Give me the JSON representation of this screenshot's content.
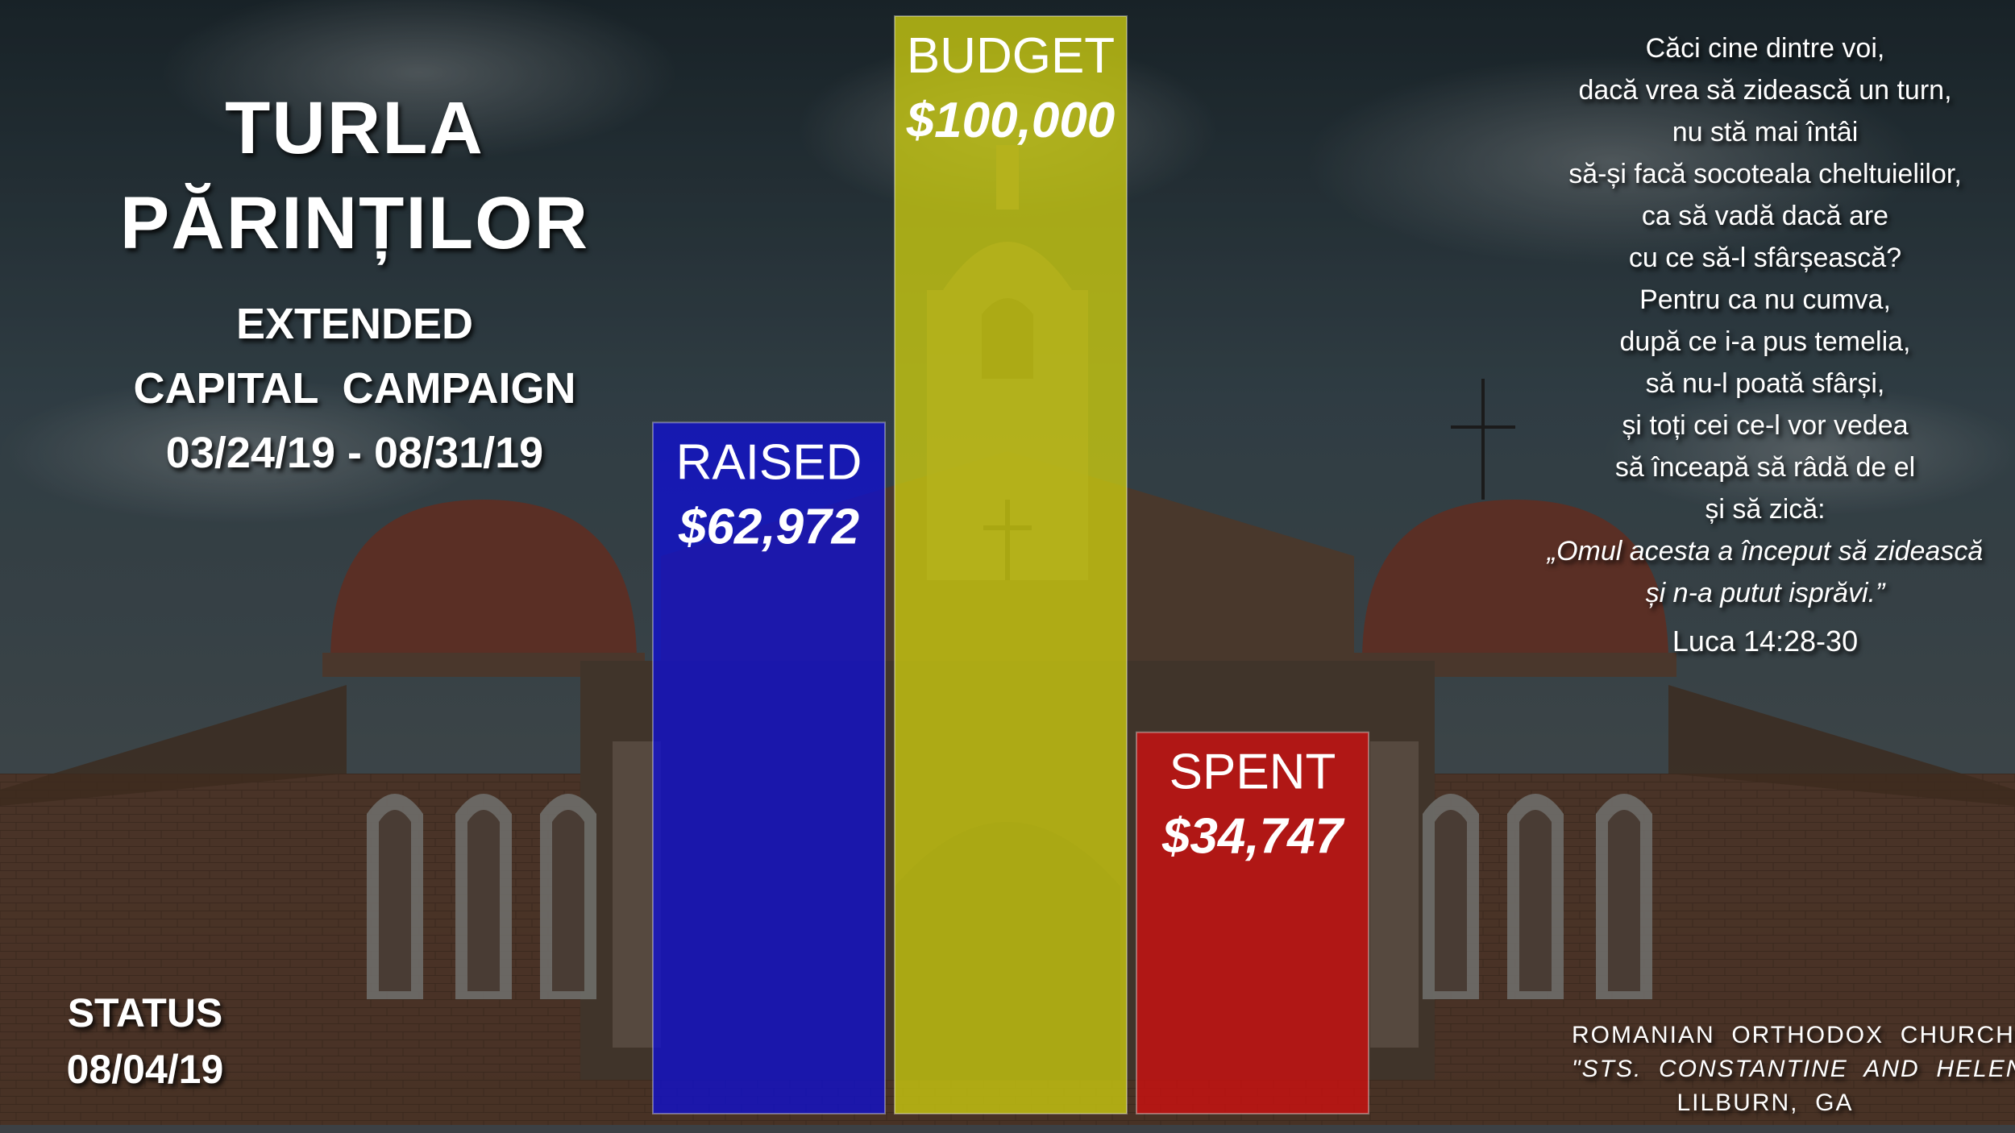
{
  "title": {
    "line1": "TURLA",
    "line2": "PĂRINȚILOR"
  },
  "subtitle": {
    "line1": "EXTENDED",
    "line2": "CAPITAL  CAMPAIGN",
    "line3": "03/24/19 - 08/31/19"
  },
  "status": {
    "label": "STATUS",
    "date": "08/04/19"
  },
  "verse": {
    "lines": [
      "Căci cine dintre voi,",
      "dacă vrea să zidească un turn,",
      "nu stă mai întâi",
      "să-și facă socoteala cheltuielilor,",
      "ca să vadă dacă are",
      "cu ce să-l sfârșească?",
      "Pentru ca nu cumva,",
      "după ce i-a pus temelia,",
      "să nu-l poată sfârși,",
      "și toți cei ce-l vor vedea",
      "să înceapă să râdă de el",
      "și să zică:"
    ],
    "quote_lines": [
      "„Omul acesta a început să zidească",
      "și n-a putut isprăvi.”"
    ],
    "reference": "Luca 14:28-30"
  },
  "church": {
    "line1": "ROMANIAN  ORTHODOX  CHURCH",
    "line2": "\"STS.  CONSTANTINE  AND  HELEN\"",
    "line3": "LILBURN,  GA"
  },
  "chart_data": {
    "type": "bar",
    "categories": [
      "RAISED",
      "BUDGET",
      "SPENT"
    ],
    "values": [
      62972,
      100000,
      34747
    ],
    "value_labels": [
      "$62,972",
      "$100,000",
      "$34,747"
    ],
    "colors": [
      "#1010d0",
      "#cccc10",
      "#d01010"
    ],
    "ylim": [
      0,
      100000
    ],
    "grid": false,
    "legend": false
  }
}
